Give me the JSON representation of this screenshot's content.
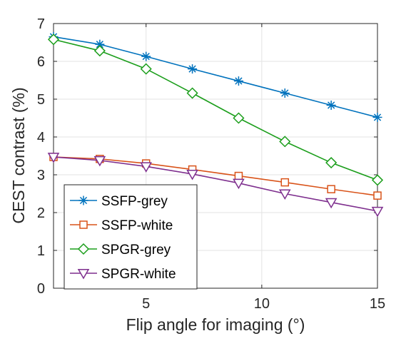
{
  "chart_data": {
    "type": "line",
    "xlabel": "Flip angle for imaging (°)",
    "ylabel": "CEST contrast (%)",
    "xlim": [
      1,
      15
    ],
    "ylim": [
      0,
      7
    ],
    "xticks": [
      5,
      10,
      15
    ],
    "yticks": [
      0,
      1,
      2,
      3,
      4,
      5,
      6,
      7
    ],
    "grid": true,
    "legend_position": "bottom-left",
    "x": [
      1,
      3,
      5,
      7,
      9,
      11,
      13,
      15
    ],
    "series": [
      {
        "name": "SSFP-grey",
        "color": "#0072BD",
        "marker": "asterisk",
        "values": [
          6.65,
          6.45,
          6.13,
          5.8,
          5.48,
          5.16,
          4.84,
          4.52
        ]
      },
      {
        "name": "SSFP-white",
        "color": "#D95319",
        "marker": "square",
        "values": [
          3.47,
          3.42,
          3.3,
          3.14,
          2.97,
          2.8,
          2.62,
          2.45
        ]
      },
      {
        "name": "SPGR-grey",
        "color": "#1B9E1B",
        "marker": "diamond",
        "values": [
          6.58,
          6.28,
          5.8,
          5.16,
          4.5,
          3.88,
          3.32,
          2.86
        ]
      },
      {
        "name": "SPGR-white",
        "color": "#7E2F8E",
        "marker": "triangle-down",
        "values": [
          3.47,
          3.38,
          3.22,
          3.02,
          2.78,
          2.5,
          2.27,
          2.04
        ]
      }
    ]
  }
}
